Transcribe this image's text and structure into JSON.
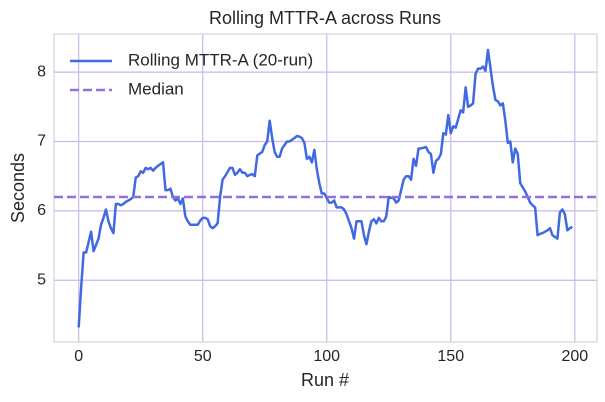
{
  "chart_data": {
    "type": "line",
    "title": "Rolling MTTR-A across Runs",
    "xlabel": "Run #",
    "ylabel": "Seconds",
    "x": [
      0,
      1,
      2,
      3,
      4,
      5,
      6,
      8,
      9,
      10,
      11,
      12,
      13,
      14,
      15,
      16,
      17,
      18,
      19,
      21,
      22,
      23,
      24,
      25,
      26,
      27,
      28,
      29,
      30,
      31,
      32,
      34,
      35,
      36,
      37,
      38,
      39,
      40,
      41,
      42,
      43,
      44,
      45,
      47,
      48,
      49,
      50,
      51,
      52,
      53,
      54,
      55,
      56,
      57,
      58,
      59,
      61,
      62,
      63,
      64,
      65,
      66,
      67,
      68,
      69,
      70,
      71,
      72,
      74,
      75,
      76,
      77,
      78,
      79,
      80,
      81,
      82,
      83,
      84,
      85,
      87,
      88,
      89,
      90,
      91,
      92,
      93,
      94,
      95,
      96,
      97,
      98,
      99,
      101,
      102,
      103,
      104,
      105,
      106,
      107,
      108,
      109,
      110,
      111,
      112,
      114,
      115,
      116,
      117,
      118,
      119,
      120,
      121,
      122,
      123,
      124,
      125,
      127,
      128,
      129,
      130,
      131,
      132,
      133,
      134,
      135,
      136,
      137,
      138,
      140,
      141,
      142,
      143,
      144,
      145,
      146,
      147,
      148,
      149,
      150,
      151,
      152,
      154,
      155,
      156,
      157,
      158,
      159,
      160,
      161,
      162,
      163,
      164,
      165,
      167,
      168,
      169,
      170,
      171,
      172,
      173,
      174,
      175,
      176,
      177,
      178,
      180,
      181,
      182,
      183,
      184,
      185,
      186,
      187,
      188,
      189,
      190,
      191,
      193,
      194,
      195,
      196,
      197,
      198,
      199
    ],
    "series": [
      {
        "name": "Rolling MTTR-A (20-run)",
        "color": "#4169e1",
        "values": [
          4.32,
          4.9,
          5.4,
          5.4,
          5.55,
          5.7,
          5.42,
          5.6,
          5.8,
          5.9,
          6.02,
          5.85,
          5.75,
          5.68,
          6.1,
          6.1,
          6.08,
          6.1,
          6.13,
          6.17,
          6.2,
          6.48,
          6.5,
          6.57,
          6.55,
          6.62,
          6.6,
          6.62,
          6.58,
          6.62,
          6.65,
          6.7,
          6.3,
          6.3,
          6.32,
          6.2,
          6.15,
          6.18,
          6.1,
          6.18,
          5.92,
          5.85,
          5.8,
          5.8,
          5.8,
          5.86,
          5.9,
          5.9,
          5.88,
          5.78,
          5.75,
          5.78,
          5.82,
          6.2,
          6.45,
          6.5,
          6.62,
          6.62,
          6.52,
          6.55,
          6.6,
          6.55,
          6.55,
          6.5,
          6.52,
          6.53,
          6.5,
          6.8,
          6.85,
          6.95,
          7.0,
          7.3,
          7.05,
          6.85,
          6.78,
          6.78,
          6.9,
          6.95,
          7.0,
          7.0,
          7.05,
          7.08,
          7.07,
          7.05,
          6.98,
          6.75,
          6.78,
          6.7,
          6.88,
          6.6,
          6.4,
          6.25,
          6.25,
          6.12,
          6.12,
          6.15,
          6.05,
          6.05,
          6.05,
          6.02,
          5.95,
          5.85,
          5.75,
          5.6,
          5.85,
          5.85,
          5.65,
          5.52,
          5.7,
          5.85,
          5.88,
          5.82,
          5.9,
          5.85,
          5.85,
          5.92,
          6.2,
          6.18,
          6.12,
          6.15,
          6.3,
          6.45,
          6.5,
          6.5,
          6.45,
          6.75,
          6.65,
          6.9,
          6.9,
          6.92,
          6.85,
          6.82,
          6.55,
          6.72,
          6.75,
          6.82,
          7.12,
          7.1,
          7.38,
          7.12,
          7.22,
          7.2,
          7.45,
          7.42,
          7.78,
          7.5,
          7.52,
          7.55,
          7.98,
          8.05,
          8.05,
          8.08,
          8.02,
          8.32,
          7.8,
          7.6,
          7.58,
          7.52,
          7.55,
          7.3,
          6.98,
          7.0,
          6.7,
          6.9,
          6.82,
          6.4,
          6.28,
          6.2,
          6.12,
          6.08,
          6.05,
          5.65,
          5.67,
          5.68,
          5.7,
          5.72,
          5.75,
          5.65,
          5.6,
          5.98,
          6.02,
          5.95,
          5.72,
          5.75,
          5.77
        ]
      }
    ],
    "hlines": [
      {
        "name": "Median",
        "value": 6.2,
        "color": "#9370db",
        "style": "dashed"
      }
    ],
    "xlim": [
      -9.95,
      208.95
    ],
    "xticks": [
      0,
      50,
      100,
      150,
      200
    ],
    "ylim": [
      4.11,
      8.55
    ],
    "yticks": [
      5,
      6,
      7,
      8
    ],
    "grid": true,
    "grid_color": "#c9b8ea",
    "legend": "upper-left"
  }
}
